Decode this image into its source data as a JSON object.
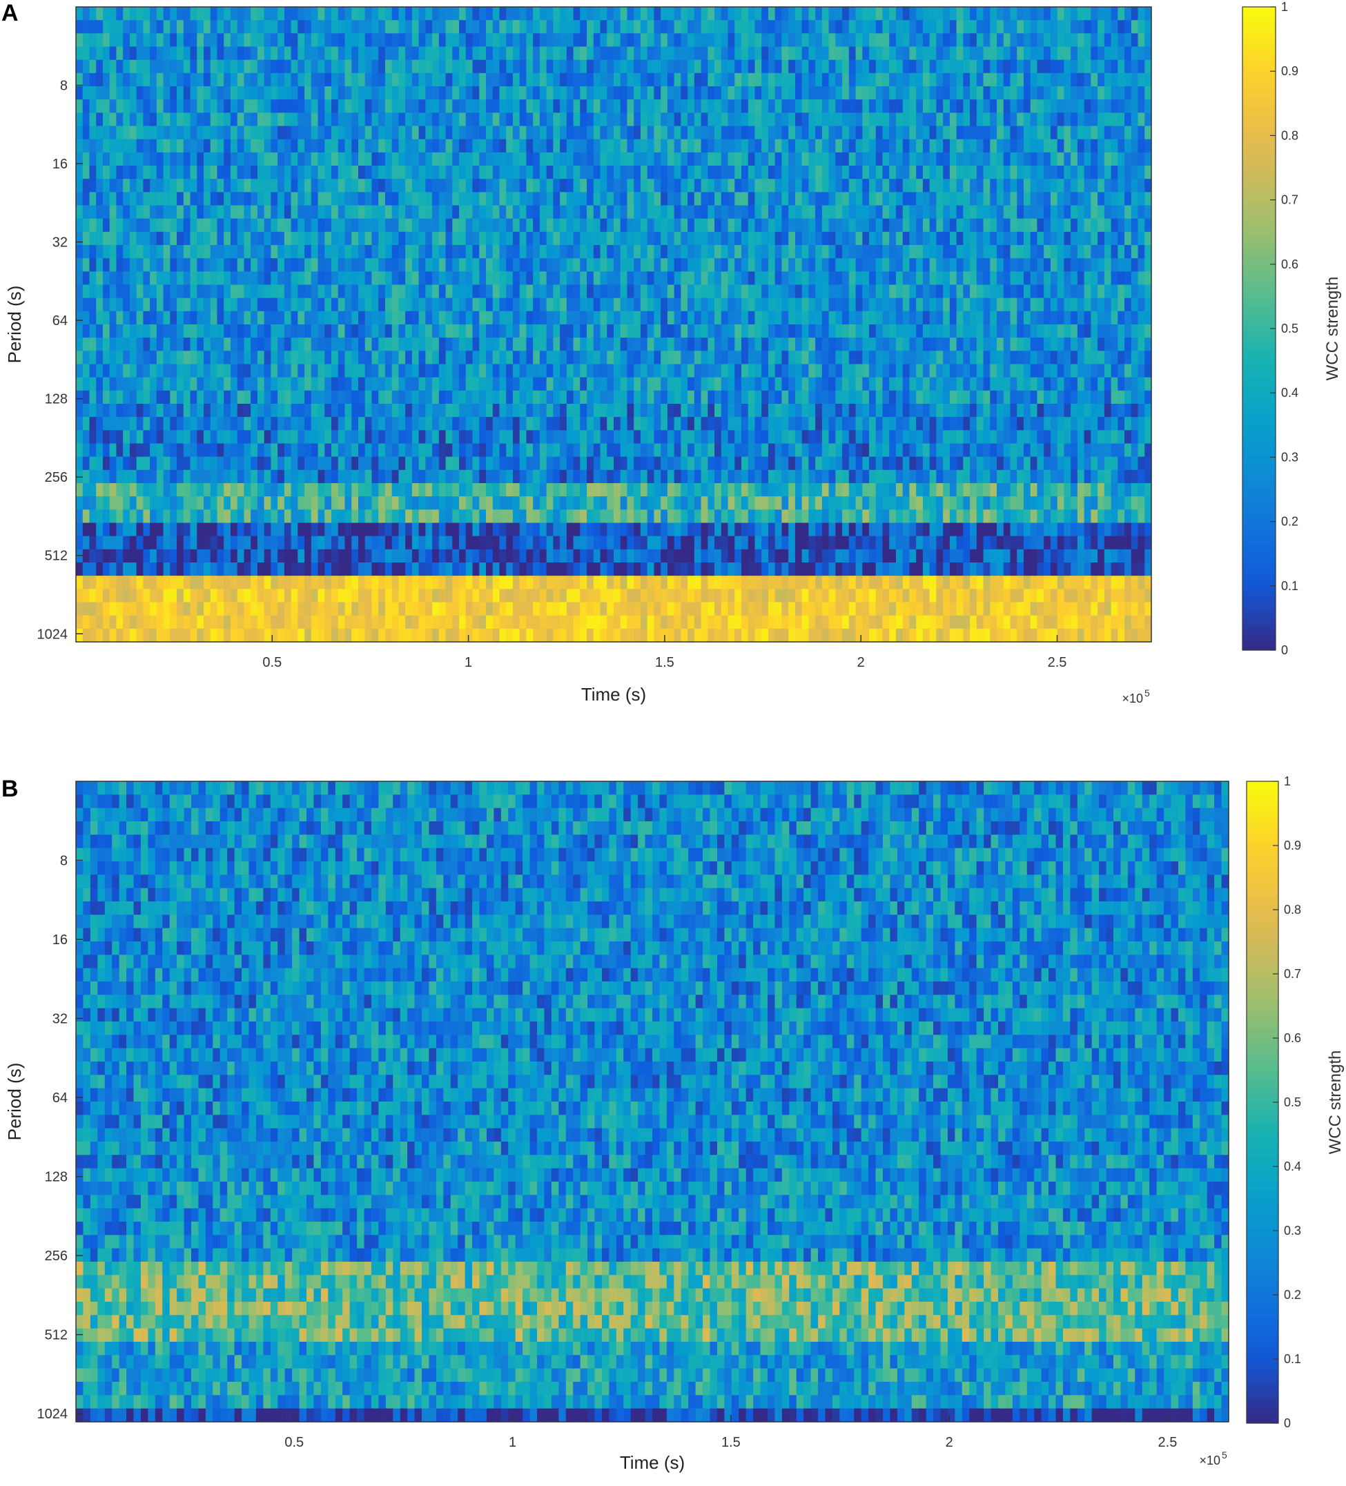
{
  "chart_data": [
    {
      "panel_label": "A",
      "type": "heatmap",
      "xlabel": "Time (s)",
      "ylabel": "Period (s)",
      "x_exponent_label": "×10",
      "x_exponent": "5",
      "x_ticks": [
        0.5,
        1,
        1.5,
        2,
        2.5
      ],
      "x_tick_labels": [
        "0.5",
        "1",
        "1.5",
        "2",
        "2.5"
      ],
      "xlim": [
        0,
        2.74
      ],
      "y_scale": "log2",
      "y_ticks": [
        8,
        16,
        32,
        64,
        128,
        256,
        512,
        1024
      ],
      "y_tick_labels": [
        "8",
        "16",
        "32",
        "64",
        "128",
        "256",
        "512",
        "1024"
      ],
      "ylim": [
        4,
        1100
      ],
      "y_reversed": true,
      "colorbar": {
        "label": "WCC strength",
        "range": [
          0,
          1
        ],
        "ticks": [
          0,
          0.1,
          0.2,
          0.3,
          0.4,
          0.5,
          0.6,
          0.7,
          0.8,
          0.9,
          1
        ],
        "tick_labels": [
          "0",
          "0.1",
          "0.2",
          "0.3",
          "0.4",
          "0.5",
          "0.6",
          "0.7",
          "0.8",
          "0.9",
          "1"
        ],
        "colormap": "parula"
      },
      "bands": [
        {
          "period_range": [
            4,
            128
          ],
          "mean_strength": 0.3
        },
        {
          "period_range": [
            128,
            256
          ],
          "mean_strength": 0.25
        },
        {
          "period_range": [
            256,
            400
          ],
          "mean_strength": 0.45
        },
        {
          "period_range": [
            400,
            620
          ],
          "mean_strength": 0.12
        },
        {
          "period_range": [
            620,
            1100
          ],
          "mean_strength": 0.85
        }
      ]
    },
    {
      "panel_label": "B",
      "type": "heatmap",
      "xlabel": "Time (s)",
      "ylabel": "Period (s)",
      "x_exponent_label": "×10",
      "x_exponent": "5",
      "x_ticks": [
        0.5,
        1,
        1.5,
        2,
        2.5
      ],
      "x_tick_labels": [
        "0.5",
        "1",
        "1.5",
        "2",
        "2.5"
      ],
      "xlim": [
        0,
        2.64
      ],
      "y_scale": "log2",
      "y_ticks": [
        8,
        16,
        32,
        64,
        128,
        256,
        512,
        1024
      ],
      "y_tick_labels": [
        "8",
        "16",
        "32",
        "64",
        "128",
        "256",
        "512",
        "1024"
      ],
      "ylim": [
        4,
        1100
      ],
      "y_reversed": true,
      "colorbar": {
        "label": "WCC strength",
        "range": [
          0,
          1
        ],
        "ticks": [
          0,
          0.1,
          0.2,
          0.3,
          0.4,
          0.5,
          0.6,
          0.7,
          0.8,
          0.9,
          1
        ],
        "tick_labels": [
          "0",
          "0.1",
          "0.2",
          "0.3",
          "0.4",
          "0.5",
          "0.6",
          "0.7",
          "0.8",
          "0.9",
          "1"
        ],
        "colormap": "parula"
      },
      "bands": [
        {
          "period_range": [
            4,
            128
          ],
          "mean_strength": 0.28
        },
        {
          "period_range": [
            128,
            256
          ],
          "mean_strength": 0.3
        },
        {
          "period_range": [
            256,
            520
          ],
          "mean_strength": 0.55
        },
        {
          "period_range": [
            520,
            1000
          ],
          "mean_strength": 0.35
        },
        {
          "period_range": [
            1000,
            1100
          ],
          "mean_strength": 0.05
        }
      ]
    }
  ]
}
